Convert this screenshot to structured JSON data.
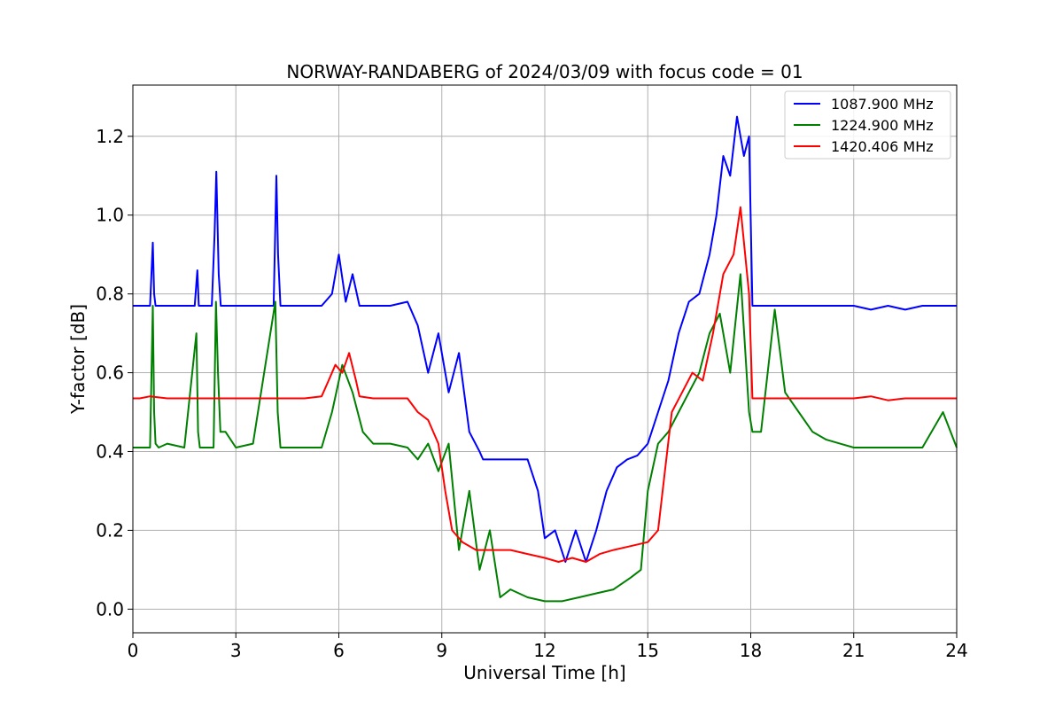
{
  "chart_data": {
    "type": "line",
    "title": "NORWAY-RANDABERG of 2024/03/09 with focus code = 01",
    "xlabel": "Universal Time [h]",
    "ylabel": "Y-factor [dB]",
    "xlim": [
      0,
      24
    ],
    "ylim": [
      -0.06,
      1.33
    ],
    "xticks": [
      0,
      3,
      6,
      9,
      12,
      15,
      18,
      21,
      24
    ],
    "yticks": [
      0.0,
      0.2,
      0.4,
      0.6,
      0.8,
      1.0,
      1.2
    ],
    "xtick_labels": [
      "0",
      "3",
      "6",
      "9",
      "12",
      "15",
      "18",
      "21",
      "24"
    ],
    "ytick_labels": [
      "0.0",
      "0.2",
      "0.4",
      "0.6",
      "0.8",
      "1.0",
      "1.2"
    ],
    "grid": true,
    "legend_position": "top-right",
    "series": [
      {
        "name": "1087.900 MHz",
        "color": "#0000ff",
        "x": [
          0,
          0.5,
          0.58,
          0.62,
          0.66,
          0.7,
          1.8,
          1.88,
          1.92,
          2.0,
          2.3,
          2.38,
          2.43,
          2.5,
          2.56,
          2.6,
          4.1,
          4.18,
          4.23,
          4.3,
          4.4,
          5.5,
          5.8,
          6.0,
          6.2,
          6.4,
          6.6,
          7.0,
          7.5,
          8.0,
          8.3,
          8.6,
          8.9,
          9.2,
          9.5,
          9.8,
          10.1,
          10.2,
          11.0,
          11.5,
          11.8,
          12.0,
          12.3,
          12.6,
          12.9,
          13.2,
          13.5,
          13.8,
          14.1,
          14.4,
          14.7,
          15.0,
          15.3,
          15.6,
          15.9,
          16.2,
          16.5,
          16.8,
          17.0,
          17.2,
          17.4,
          17.6,
          17.8,
          17.95,
          18.05,
          18.2,
          19.0,
          20.0,
          21.0,
          21.5,
          22.0,
          22.5,
          23.0,
          23.5,
          24.0
        ],
        "values": [
          0.77,
          0.77,
          0.93,
          0.8,
          0.77,
          0.77,
          0.77,
          0.86,
          0.77,
          0.77,
          0.77,
          0.95,
          1.11,
          0.85,
          0.77,
          0.77,
          0.77,
          1.1,
          0.9,
          0.77,
          0.77,
          0.77,
          0.8,
          0.9,
          0.78,
          0.85,
          0.77,
          0.77,
          0.77,
          0.78,
          0.72,
          0.6,
          0.7,
          0.55,
          0.65,
          0.45,
          0.4,
          0.38,
          0.38,
          0.38,
          0.3,
          0.18,
          0.2,
          0.12,
          0.2,
          0.12,
          0.2,
          0.3,
          0.36,
          0.38,
          0.39,
          0.42,
          0.5,
          0.58,
          0.7,
          0.78,
          0.8,
          0.9,
          1.0,
          1.15,
          1.1,
          1.25,
          1.15,
          1.2,
          0.77,
          0.77,
          0.77,
          0.77,
          0.77,
          0.76,
          0.77,
          0.76,
          0.77,
          0.77,
          0.77
        ]
      },
      {
        "name": "1224.900 MHz",
        "color": "#008000",
        "x": [
          0,
          0.5,
          0.58,
          0.62,
          0.66,
          0.75,
          1.0,
          1.5,
          1.85,
          1.9,
          1.95,
          2.05,
          2.35,
          2.42,
          2.48,
          2.55,
          2.7,
          3.0,
          3.5,
          4.15,
          4.22,
          4.3,
          4.4,
          5.5,
          5.8,
          6.1,
          6.4,
          6.7,
          7.0,
          7.5,
          8.0,
          8.3,
          8.6,
          8.9,
          9.2,
          9.5,
          9.8,
          10.1,
          10.4,
          10.7,
          11.0,
          11.5,
          12.0,
          12.5,
          13.0,
          13.5,
          14.0,
          14.5,
          14.8,
          15.0,
          15.3,
          15.6,
          15.9,
          16.2,
          16.5,
          16.8,
          17.1,
          17.4,
          17.7,
          17.95,
          18.05,
          18.3,
          18.7,
          19.0,
          19.4,
          19.8,
          20.2,
          20.6,
          21.0,
          22.0,
          23.0,
          23.6,
          24.0
        ],
        "values": [
          0.41,
          0.41,
          0.77,
          0.5,
          0.42,
          0.41,
          0.42,
          0.41,
          0.7,
          0.45,
          0.41,
          0.41,
          0.41,
          0.78,
          0.6,
          0.45,
          0.45,
          0.41,
          0.42,
          0.78,
          0.5,
          0.41,
          0.41,
          0.41,
          0.5,
          0.62,
          0.55,
          0.45,
          0.42,
          0.42,
          0.41,
          0.38,
          0.42,
          0.35,
          0.42,
          0.15,
          0.3,
          0.1,
          0.2,
          0.03,
          0.05,
          0.03,
          0.02,
          0.02,
          0.03,
          0.04,
          0.05,
          0.08,
          0.1,
          0.3,
          0.42,
          0.45,
          0.5,
          0.55,
          0.6,
          0.7,
          0.75,
          0.6,
          0.85,
          0.5,
          0.45,
          0.45,
          0.76,
          0.55,
          0.5,
          0.45,
          0.43,
          0.42,
          0.41,
          0.41,
          0.41,
          0.5,
          0.41
        ]
      },
      {
        "name": "1420.406 MHz",
        "color": "#ff0000",
        "x": [
          0,
          0.2,
          0.5,
          1.0,
          2.0,
          3.0,
          4.0,
          5.0,
          5.5,
          5.7,
          5.9,
          6.1,
          6.3,
          6.5,
          6.6,
          7.0,
          8.0,
          8.3,
          8.6,
          8.9,
          9.1,
          9.3,
          9.6,
          10.0,
          10.5,
          11.0,
          11.5,
          12.0,
          12.4,
          12.8,
          13.2,
          13.6,
          14.0,
          14.5,
          15.0,
          15.3,
          15.5,
          15.7,
          16.0,
          16.3,
          16.6,
          16.9,
          17.2,
          17.5,
          17.7,
          17.95,
          18.05,
          18.5,
          19.0,
          20.0,
          21.0,
          21.5,
          22.0,
          22.5,
          23.0,
          24.0
        ],
        "values": [
          0.535,
          0.535,
          0.54,
          0.535,
          0.535,
          0.535,
          0.535,
          0.535,
          0.54,
          0.58,
          0.62,
          0.6,
          0.65,
          0.58,
          0.54,
          0.535,
          0.535,
          0.5,
          0.48,
          0.42,
          0.3,
          0.2,
          0.17,
          0.15,
          0.15,
          0.15,
          0.14,
          0.13,
          0.12,
          0.13,
          0.12,
          0.14,
          0.15,
          0.16,
          0.17,
          0.2,
          0.35,
          0.5,
          0.55,
          0.6,
          0.58,
          0.7,
          0.85,
          0.9,
          1.02,
          0.8,
          0.535,
          0.535,
          0.535,
          0.535,
          0.535,
          0.54,
          0.53,
          0.535,
          0.535,
          0.535
        ]
      }
    ]
  }
}
